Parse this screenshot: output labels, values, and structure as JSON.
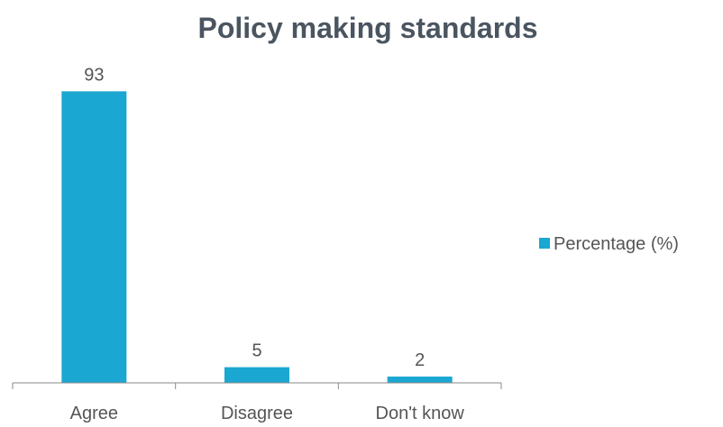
{
  "chart_data": {
    "type": "bar",
    "title": "Policy making standards",
    "xlabel": "",
    "ylabel": "",
    "categories": [
      "Agree",
      "Disagree",
      "Don't know"
    ],
    "series": [
      {
        "name": "Percentage (%)",
        "values": [
          93,
          5,
          2
        ],
        "color": "#1aa7d1"
      }
    ],
    "data_labels": [
      "93",
      "5",
      "2"
    ],
    "ylim": [
      0,
      100
    ],
    "grid": false,
    "legend_position": "right"
  }
}
